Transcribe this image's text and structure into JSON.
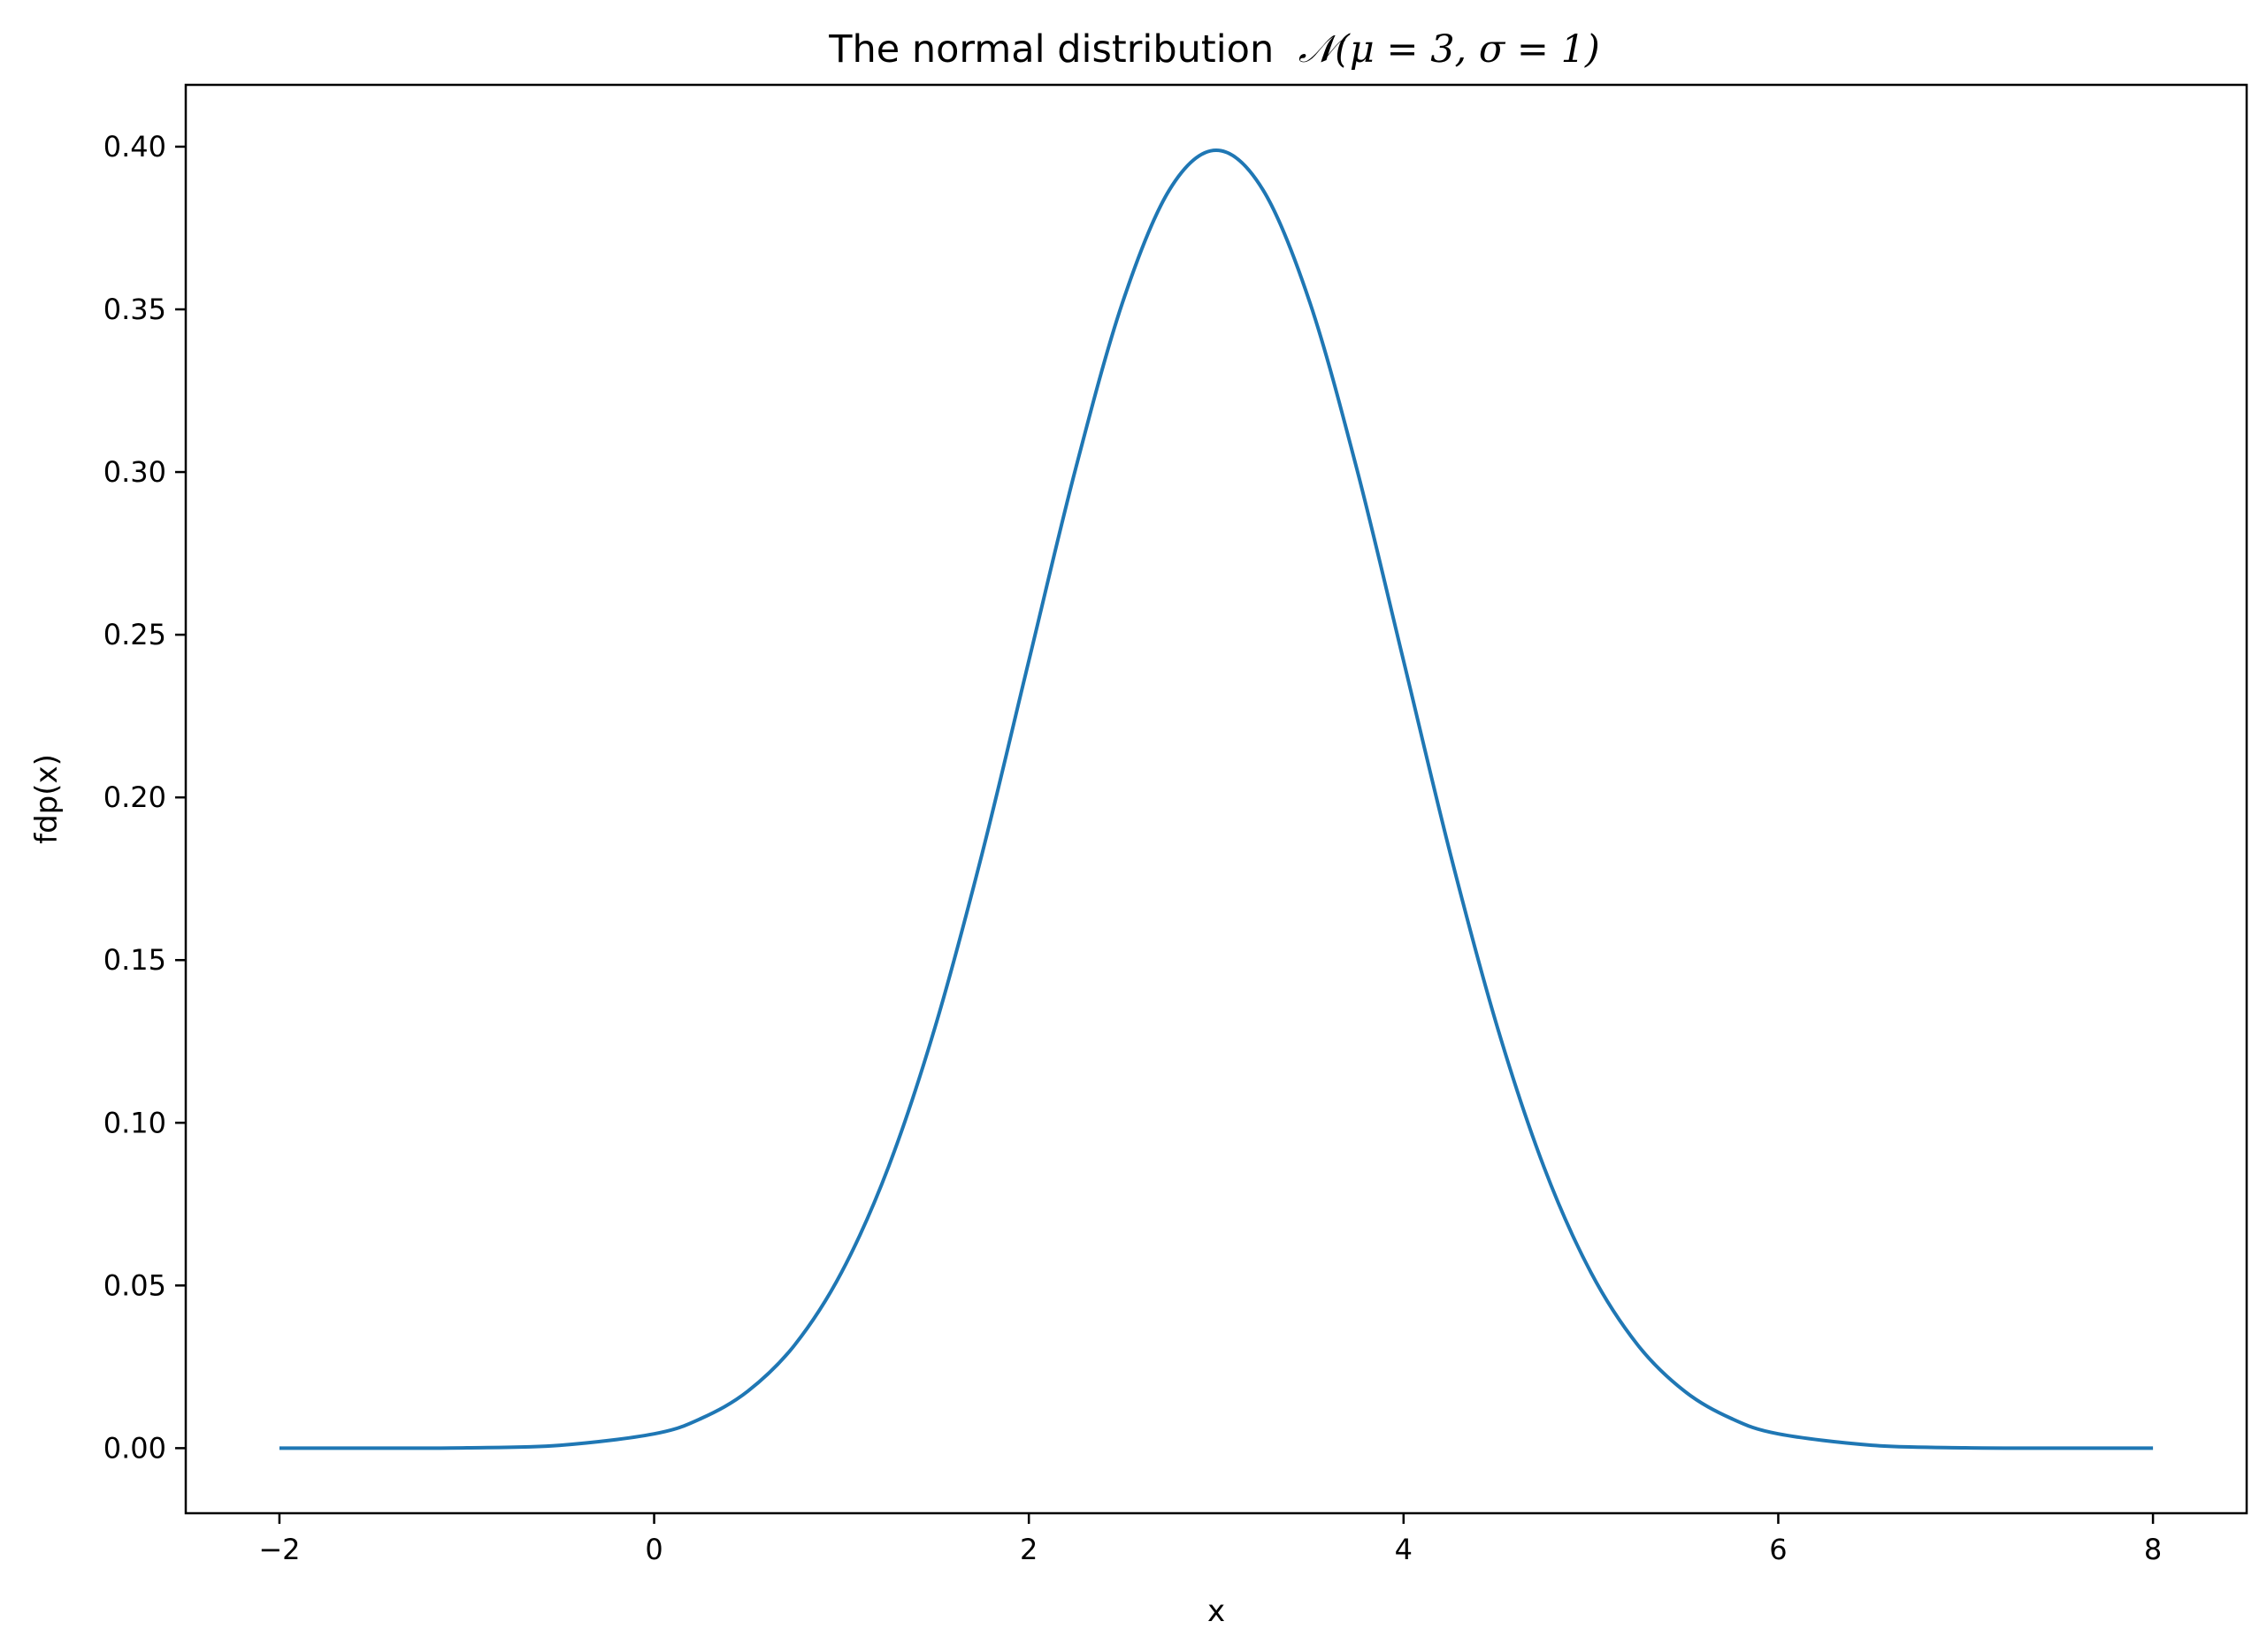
{
  "chart_data": {
    "type": "line",
    "title": "The normal distribution",
    "title_math": "𝒩(μ = 3, σ = 1)",
    "xlabel": "x",
    "ylabel": "fdp(x)",
    "xlim": [
      -2.5,
      8.5
    ],
    "ylim": [
      -0.02,
      0.419
    ],
    "x_ticks": [
      -2,
      0,
      2,
      4,
      6,
      8
    ],
    "x_tick_labels": [
      "−2",
      "0",
      "2",
      "4",
      "6",
      "8"
    ],
    "y_ticks": [
      0.0,
      0.05,
      0.1,
      0.15,
      0.2,
      0.25,
      0.3,
      0.35,
      0.4
    ],
    "y_tick_labels": [
      "0.00",
      "0.05",
      "0.10",
      "0.15",
      "0.20",
      "0.25",
      "0.30",
      "0.35",
      "0.40"
    ],
    "grid": false,
    "series": [
      {
        "color": "#1f77b4",
        "x": [
          -2,
          -1.5,
          -1,
          -0.5,
          0,
          0.25,
          0.5,
          0.75,
          1,
          1.25,
          1.5,
          1.75,
          2,
          2.25,
          2.5,
          2.75,
          3,
          3.25,
          3.5,
          3.75,
          4,
          4.25,
          4.5,
          4.75,
          5,
          5.25,
          5.5,
          5.75,
          6,
          6.5,
          7,
          7.5,
          8
        ],
        "y": [
          0.0,
          0.0,
          0.0001,
          0.0009,
          0.0044,
          0.0091,
          0.0175,
          0.0317,
          0.054,
          0.0863,
          0.1295,
          0.1826,
          0.242,
          0.3011,
          0.3521,
          0.3867,
          0.3989,
          0.3867,
          0.3521,
          0.3011,
          0.242,
          0.1826,
          0.1295,
          0.0863,
          0.054,
          0.0317,
          0.0175,
          0.0091,
          0.0044,
          0.0009,
          0.0001,
          0.0,
          0.0
        ]
      }
    ]
  }
}
